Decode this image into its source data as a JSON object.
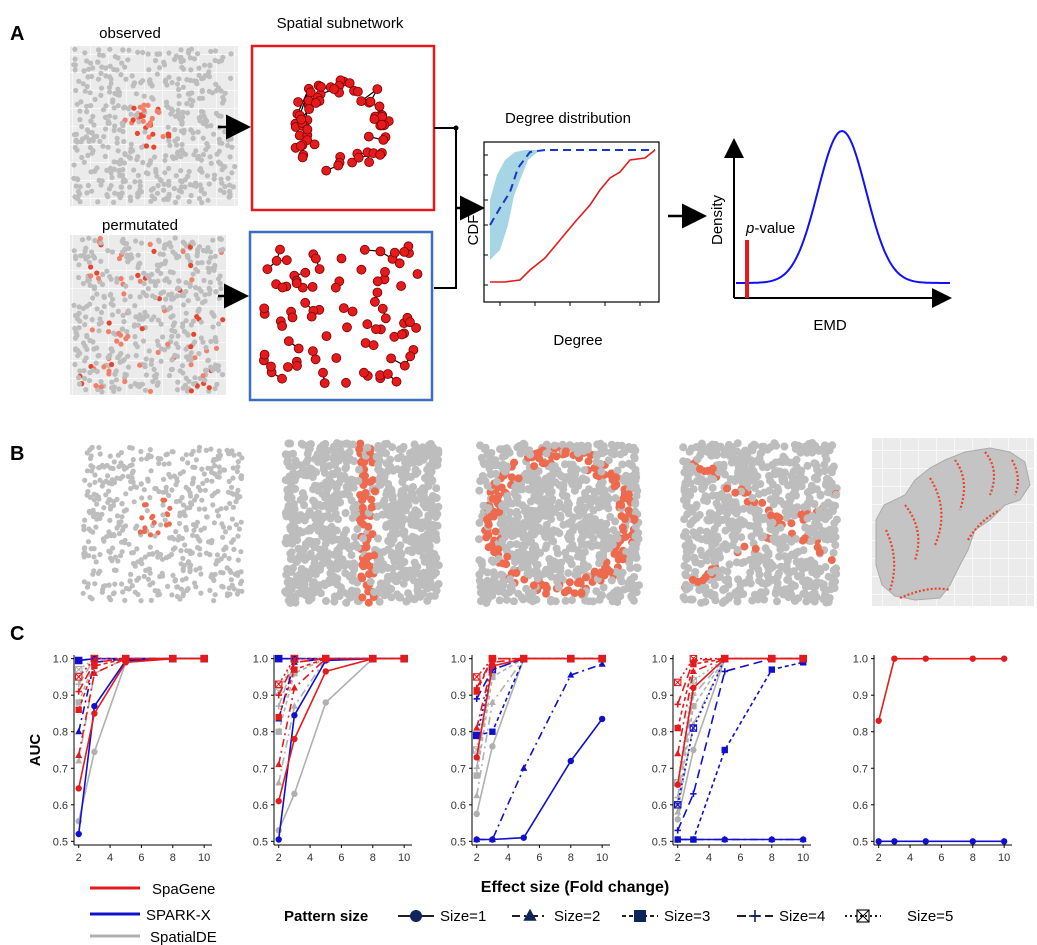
{
  "figure": {
    "panel_a_letter": "A",
    "panel_b_letter": "B",
    "panel_c_letter": "C"
  },
  "panel_a": {
    "observed_label": "observed",
    "permutated_label": "permutated",
    "subnetwork_title": "Spatial subnetwork",
    "degree_title": "Degree distribution",
    "cdf_label": "CDF",
    "degree_label": "Degree",
    "density_label": "Density",
    "emd_label": "EMD",
    "pvalue_italic": "p",
    "pvalue_rest": "-value",
    "colors": {
      "observed": "#e41a1c",
      "permuted": "#3b5fc0",
      "band": "#a6d5e6",
      "null_line": "#1a35c9",
      "density": "#1010ff"
    }
  },
  "panel_c": {
    "y_axis_label": "AUC",
    "x_axis_label": "Effect size (Fold change)",
    "legend": {
      "methods": [
        {
          "name": "SpaGene",
          "color": "#e41a1c"
        },
        {
          "name": "SPARK-X",
          "color": "#1010cc"
        },
        {
          "name": "SpatialDE",
          "color": "#b0b0b0"
        }
      ],
      "pattern_size_title": "Pattern size",
      "sizes": [
        "Size=1",
        "Size=2",
        "Size=3",
        "Size=4",
        "Size=5"
      ]
    }
  },
  "chart_data": [
    {
      "type": "line",
      "panel": "C-1",
      "x": [
        2,
        3,
        5,
        8,
        10
      ],
      "xlim": [
        1.7,
        10.5
      ],
      "ylim": [
        0.5,
        1.0
      ],
      "xticks": [
        2,
        4,
        6,
        8,
        10
      ],
      "yticks": [
        0.5,
        0.6,
        0.7,
        0.8,
        0.9,
        1.0
      ],
      "series": [
        {
          "method": "SpaGene",
          "size": 1,
          "values": [
            0.645,
            0.85,
            0.99,
            1.0,
            1.0
          ]
        },
        {
          "method": "SpaGene",
          "size": 2,
          "values": [
            0.735,
            0.96,
            1.0,
            1.0,
            1.0
          ]
        },
        {
          "method": "SpaGene",
          "size": 3,
          "values": [
            0.86,
            0.98,
            1.0,
            1.0,
            1.0
          ]
        },
        {
          "method": "SpaGene",
          "size": 4,
          "values": [
            0.91,
            0.99,
            1.0,
            1.0,
            1.0
          ]
        },
        {
          "method": "SpaGene",
          "size": 5,
          "values": [
            0.95,
            1.0,
            1.0,
            1.0,
            1.0
          ]
        },
        {
          "method": "SPARK-X",
          "size": 1,
          "values": [
            0.52,
            0.87,
            0.995,
            1.0,
            1.0
          ]
        },
        {
          "method": "SPARK-X",
          "size": 2,
          "values": [
            0.8,
            0.99,
            1.0,
            1.0,
            1.0
          ]
        },
        {
          "method": "SPARK-X",
          "size": 3,
          "values": [
            0.995,
            1.0,
            1.0,
            1.0,
            1.0
          ]
        },
        {
          "method": "SPARK-X",
          "size": 4,
          "values": [
            0.995,
            1.0,
            1.0,
            1.0,
            1.0
          ]
        },
        {
          "method": "SPARK-X",
          "size": 5,
          "values": [
            0.995,
            1.0,
            1.0,
            1.0,
            1.0
          ]
        },
        {
          "method": "SpatialDE",
          "size": 1,
          "values": [
            0.555,
            0.745,
            0.99,
            1.0,
            1.0
          ]
        },
        {
          "method": "SpatialDE",
          "size": 2,
          "values": [
            0.72,
            0.96,
            1.0,
            1.0,
            1.0
          ]
        },
        {
          "method": "SpatialDE",
          "size": 3,
          "values": [
            0.88,
            0.99,
            1.0,
            1.0,
            1.0
          ]
        },
        {
          "method": "SpatialDE",
          "size": 4,
          "values": [
            0.93,
            1.0,
            1.0,
            1.0,
            1.0
          ]
        },
        {
          "method": "SpatialDE",
          "size": 5,
          "values": [
            0.97,
            1.0,
            1.0,
            1.0,
            1.0
          ]
        }
      ]
    },
    {
      "type": "line",
      "panel": "C-2",
      "x": [
        2,
        3,
        5,
        8,
        10
      ],
      "xlim": [
        1.7,
        10.5
      ],
      "ylim": [
        0.5,
        1.0
      ],
      "xticks": [
        2,
        4,
        6,
        8,
        10
      ],
      "yticks": [
        0.5,
        0.6,
        0.7,
        0.8,
        0.9,
        1.0
      ],
      "series": [
        {
          "method": "SpaGene",
          "size": 1,
          "values": [
            0.61,
            0.78,
            0.965,
            1.0,
            1.0
          ]
        },
        {
          "method": "SpaGene",
          "size": 2,
          "values": [
            0.71,
            0.92,
            1.0,
            1.0,
            1.0
          ]
        },
        {
          "method": "SpaGene",
          "size": 3,
          "values": [
            0.84,
            0.97,
            1.0,
            1.0,
            1.0
          ]
        },
        {
          "method": "SpaGene",
          "size": 4,
          "values": [
            0.9,
            0.99,
            1.0,
            1.0,
            1.0
          ]
        },
        {
          "method": "SpaGene",
          "size": 5,
          "values": [
            0.93,
            1.0,
            1.0,
            1.0,
            1.0
          ]
        },
        {
          "method": "SPARK-X",
          "size": 1,
          "values": [
            0.505,
            0.845,
            0.995,
            1.0,
            1.0
          ]
        },
        {
          "method": "SPARK-X",
          "size": 2,
          "values": [
            0.835,
            0.99,
            1.0,
            1.0,
            1.0
          ]
        },
        {
          "method": "SPARK-X",
          "size": 3,
          "values": [
            1.0,
            1.0,
            1.0,
            1.0,
            1.0
          ]
        },
        {
          "method": "SPARK-X",
          "size": 4,
          "values": [
            1.0,
            1.0,
            1.0,
            1.0,
            1.0
          ]
        },
        {
          "method": "SPARK-X",
          "size": 5,
          "values": [
            1.0,
            1.0,
            1.0,
            1.0,
            1.0
          ]
        },
        {
          "method": "SpatialDE",
          "size": 1,
          "values": [
            0.53,
            0.63,
            0.88,
            1.0,
            1.0
          ]
        },
        {
          "method": "SpatialDE",
          "size": 2,
          "values": [
            0.66,
            0.87,
            1.0,
            1.0,
            1.0
          ]
        },
        {
          "method": "SpatialDE",
          "size": 3,
          "values": [
            0.8,
            0.96,
            1.0,
            1.0,
            1.0
          ]
        },
        {
          "method": "SpatialDE",
          "size": 4,
          "values": [
            0.87,
            0.99,
            1.0,
            1.0,
            1.0
          ]
        },
        {
          "method": "SpatialDE",
          "size": 5,
          "values": [
            0.91,
            1.0,
            1.0,
            1.0,
            1.0
          ]
        }
      ]
    },
    {
      "type": "line",
      "panel": "C-3",
      "x": [
        2,
        3,
        5,
        8,
        10
      ],
      "xlim": [
        1.7,
        10.5
      ],
      "ylim": [
        0.5,
        1.0
      ],
      "xticks": [
        2,
        4,
        6,
        8,
        10
      ],
      "yticks": [
        0.5,
        0.6,
        0.7,
        0.8,
        0.9,
        1.0
      ],
      "series": [
        {
          "method": "SpaGene",
          "size": 1,
          "values": [
            0.73,
            0.98,
            1.0,
            1.0,
            1.0
          ]
        },
        {
          "method": "SpaGene",
          "size": 2,
          "values": [
            0.81,
            0.99,
            1.0,
            1.0,
            1.0
          ]
        },
        {
          "method": "SpaGene",
          "size": 3,
          "values": [
            0.91,
            1.0,
            1.0,
            1.0,
            1.0
          ]
        },
        {
          "method": "SpaGene",
          "size": 4,
          "values": [
            0.92,
            1.0,
            1.0,
            1.0,
            1.0
          ]
        },
        {
          "method": "SpaGene",
          "size": 5,
          "values": [
            0.95,
            1.0,
            1.0,
            1.0,
            1.0
          ]
        },
        {
          "method": "SPARK-X",
          "size": 1,
          "values": [
            0.505,
            0.505,
            0.51,
            0.72,
            0.835
          ]
        },
        {
          "method": "SPARK-X",
          "size": 2,
          "values": [
            0.505,
            0.505,
            0.7,
            0.955,
            0.985
          ]
        },
        {
          "method": "SPARK-X",
          "size": 3,
          "values": [
            0.79,
            0.8,
            1.0,
            1.0,
            1.0
          ]
        },
        {
          "method": "SPARK-X",
          "size": 4,
          "values": [
            0.89,
            0.97,
            1.0,
            1.0,
            1.0
          ]
        },
        {
          "method": "SPARK-X",
          "size": 5,
          "values": [
            0.79,
            0.97,
            1.0,
            1.0,
            1.0
          ]
        },
        {
          "method": "SpatialDE",
          "size": 1,
          "values": [
            0.575,
            0.76,
            1.0,
            1.0,
            1.0
          ]
        },
        {
          "method": "SpatialDE",
          "size": 2,
          "values": [
            0.625,
            0.88,
            1.0,
            1.0,
            1.0
          ]
        },
        {
          "method": "SpatialDE",
          "size": 3,
          "values": [
            0.68,
            0.95,
            1.0,
            1.0,
            1.0
          ]
        },
        {
          "method": "SpatialDE",
          "size": 4,
          "values": [
            0.7,
            0.98,
            1.0,
            1.0,
            1.0
          ]
        },
        {
          "method": "SpatialDE",
          "size": 5,
          "values": [
            0.75,
            1.0,
            1.0,
            1.0,
            1.0
          ]
        }
      ]
    },
    {
      "type": "line",
      "panel": "C-4",
      "x": [
        2,
        3,
        5,
        8,
        10
      ],
      "xlim": [
        1.7,
        10.5
      ],
      "ylim": [
        0.5,
        1.0
      ],
      "xticks": [
        2,
        4,
        6,
        8,
        10
      ],
      "yticks": [
        0.5,
        0.6,
        0.7,
        0.8,
        0.9,
        1.0
      ],
      "series": [
        {
          "method": "SpaGene",
          "size": 1,
          "values": [
            0.655,
            0.92,
            1.0,
            1.0,
            1.0
          ]
        },
        {
          "method": "SpaGene",
          "size": 2,
          "values": [
            0.74,
            0.965,
            1.0,
            1.0,
            1.0
          ]
        },
        {
          "method": "SpaGene",
          "size": 3,
          "values": [
            0.81,
            0.985,
            1.0,
            1.0,
            1.0
          ]
        },
        {
          "method": "SpaGene",
          "size": 4,
          "values": [
            0.875,
            0.995,
            1.0,
            1.0,
            1.0
          ]
        },
        {
          "method": "SpaGene",
          "size": 5,
          "values": [
            0.935,
            1.0,
            1.0,
            1.0,
            1.0
          ]
        },
        {
          "method": "SPARK-X",
          "size": 1,
          "values": [
            0.505,
            0.505,
            0.505,
            0.505,
            0.505
          ]
        },
        {
          "method": "SPARK-X",
          "size": 2,
          "values": [
            0.505,
            0.505,
            0.505,
            0.505,
            0.505
          ]
        },
        {
          "method": "SPARK-X",
          "size": 3,
          "values": [
            0.505,
            0.505,
            0.75,
            0.97,
            0.99
          ]
        },
        {
          "method": "SPARK-X",
          "size": 4,
          "values": [
            0.53,
            0.63,
            0.965,
            1.0,
            1.0
          ]
        },
        {
          "method": "SPARK-X",
          "size": 5,
          "values": [
            0.6,
            0.81,
            1.0,
            1.0,
            1.0
          ]
        },
        {
          "method": "SpatialDE",
          "size": 1,
          "values": [
            0.56,
            0.75,
            1.0,
            1.0,
            1.0
          ]
        },
        {
          "method": "SpatialDE",
          "size": 2,
          "values": [
            0.58,
            0.82,
            1.0,
            1.0,
            1.0
          ]
        },
        {
          "method": "SpatialDE",
          "size": 3,
          "values": [
            0.6,
            0.87,
            1.0,
            1.0,
            1.0
          ]
        },
        {
          "method": "SpatialDE",
          "size": 4,
          "values": [
            0.62,
            0.9,
            1.0,
            1.0,
            1.0
          ]
        },
        {
          "method": "SpatialDE",
          "size": 5,
          "values": [
            0.66,
            0.94,
            1.0,
            1.0,
            1.0
          ]
        }
      ]
    },
    {
      "type": "line",
      "panel": "C-5",
      "x": [
        2,
        3,
        5,
        8,
        10
      ],
      "xlim": [
        1.7,
        10.5
      ],
      "ylim": [
        0.5,
        1.0
      ],
      "xticks": [
        2,
        4,
        6,
        8,
        10
      ],
      "yticks": [
        0.5,
        0.6,
        0.7,
        0.8,
        0.9,
        1.0
      ],
      "series": [
        {
          "method": "SpaGene",
          "size": 1,
          "values": [
            0.83,
            1.0,
            1.0,
            1.0,
            1.0
          ]
        },
        {
          "method": "SPARK-X",
          "size": 1,
          "values": [
            0.5,
            0.5,
            0.5,
            0.5,
            0.5
          ]
        }
      ]
    }
  ]
}
